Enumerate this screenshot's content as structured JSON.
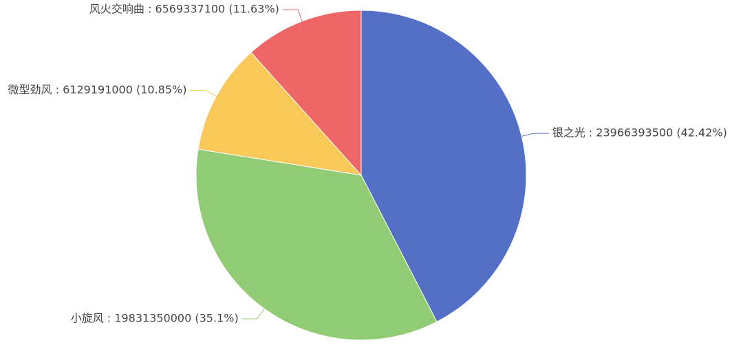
{
  "chart_data": {
    "type": "pie",
    "values": [
      23966393500,
      19831350000,
      6129191000,
      6569337100
    ],
    "value_labels": [
      "银之光 : 23966393500 (42.42%)",
      "小旋风 : 19831350000 (35.1%)",
      "微型劲风 : 6129191000 (10.85%)",
      "风火交响曲 : 6569337100 (11.63%)"
    ],
    "colors": [
      "#5470c6",
      "#91cc75",
      "#fac858",
      "#ee6666"
    ]
  }
}
